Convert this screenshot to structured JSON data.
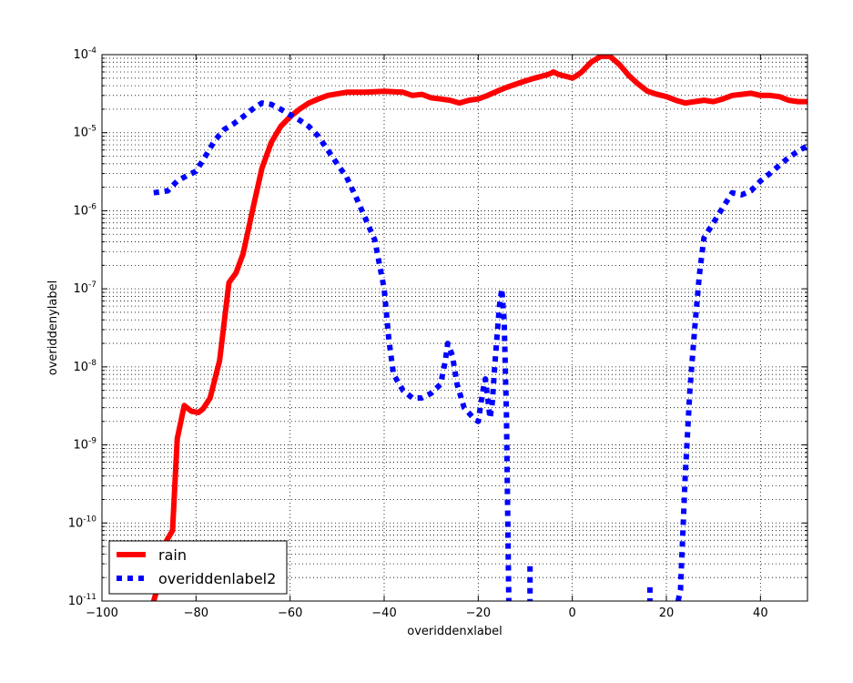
{
  "chart_data": {
    "type": "line",
    "title": "",
    "xlabel": "overiddenxlabel",
    "ylabel": "overiddenylabel",
    "xlim": [
      -100,
      50
    ],
    "ylim": [
      1e-11,
      0.0001
    ],
    "yscale": "log",
    "grid": true,
    "legend_position": "lower-left",
    "x_ticks": [
      {
        "value": -100,
        "label": "−100"
      },
      {
        "value": -80,
        "label": "−80"
      },
      {
        "value": -60,
        "label": "−60"
      },
      {
        "value": -40,
        "label": "−40"
      },
      {
        "value": -20,
        "label": "−20"
      },
      {
        "value": 0,
        "label": "0"
      },
      {
        "value": 20,
        "label": "20"
      },
      {
        "value": 40,
        "label": "40"
      }
    ],
    "y_ticks": [
      {
        "exp": -11,
        "base": "10",
        "sup": "-11"
      },
      {
        "exp": -10,
        "base": "10",
        "sup": "-10"
      },
      {
        "exp": -9,
        "base": "10",
        "sup": "-9"
      },
      {
        "exp": -8,
        "base": "10",
        "sup": "-8"
      },
      {
        "exp": -7,
        "base": "10",
        "sup": "-7"
      },
      {
        "exp": -6,
        "base": "10",
        "sup": "-6"
      },
      {
        "exp": -5,
        "base": "10",
        "sup": "-5"
      },
      {
        "exp": -4,
        "base": "10",
        "sup": "-4"
      }
    ],
    "series": [
      {
        "name": "rain",
        "color": "#ff0000",
        "style": "solid",
        "points": [
          [
            -89,
            1e-11
          ],
          [
            -88,
            1.6e-11
          ],
          [
            -87,
            5e-11
          ],
          [
            -85,
            8e-11
          ],
          [
            -84,
            1.2e-09
          ],
          [
            -82.5,
            3.2e-09
          ],
          [
            -81,
            2.7e-09
          ],
          [
            -79.5,
            2.6e-09
          ],
          [
            -78.5,
            2.9e-09
          ],
          [
            -77,
            4e-09
          ],
          [
            -75,
            1.2e-08
          ],
          [
            -73,
            1.2e-07
          ],
          [
            -71.5,
            1.6e-07
          ],
          [
            -70,
            2.8e-07
          ],
          [
            -68,
            1e-06
          ],
          [
            -66,
            3.5e-06
          ],
          [
            -64,
            7.5e-06
          ],
          [
            -62,
            1.2e-05
          ],
          [
            -60,
            1.6e-05
          ],
          [
            -58,
            2e-05
          ],
          [
            -56,
            2.4e-05
          ],
          [
            -54,
            2.7e-05
          ],
          [
            -52,
            3e-05
          ],
          [
            -48,
            3.3e-05
          ],
          [
            -44,
            3.3e-05
          ],
          [
            -40,
            3.4e-05
          ],
          [
            -36,
            3.3e-05
          ],
          [
            -34,
            3e-05
          ],
          [
            -32,
            3.1e-05
          ],
          [
            -30,
            2.8e-05
          ],
          [
            -28,
            2.7e-05
          ],
          [
            -26,
            2.6e-05
          ],
          [
            -24,
            2.4e-05
          ],
          [
            -22,
            2.6e-05
          ],
          [
            -20,
            2.7e-05
          ],
          [
            -18,
            3e-05
          ],
          [
            -16,
            3.4e-05
          ],
          [
            -14,
            3.8e-05
          ],
          [
            -10,
            4.6e-05
          ],
          [
            -8,
            5e-05
          ],
          [
            -5,
            5.6e-05
          ],
          [
            -4,
            6e-05
          ],
          [
            -3,
            5.6e-05
          ],
          [
            -1,
            5.2e-05
          ],
          [
            0,
            5e-05
          ],
          [
            1,
            5.4e-05
          ],
          [
            2,
            6e-05
          ],
          [
            4,
            8e-05
          ],
          [
            6,
            9.5e-05
          ],
          [
            8,
            9.5e-05
          ],
          [
            10,
            7.5e-05
          ],
          [
            12,
            5.4e-05
          ],
          [
            14,
            4.2e-05
          ],
          [
            16,
            3.4e-05
          ],
          [
            18,
            3.1e-05
          ],
          [
            20,
            2.9e-05
          ],
          [
            22,
            2.6e-05
          ],
          [
            24,
            2.4e-05
          ],
          [
            26,
            2.5e-05
          ],
          [
            28,
            2.6e-05
          ],
          [
            30,
            2.5e-05
          ],
          [
            32,
            2.7e-05
          ],
          [
            34,
            3e-05
          ],
          [
            36,
            3.1e-05
          ],
          [
            38,
            3.2e-05
          ],
          [
            40,
            3e-05
          ],
          [
            42,
            3e-05
          ],
          [
            44,
            2.9e-05
          ],
          [
            46,
            2.6e-05
          ],
          [
            48,
            2.5e-05
          ],
          [
            50,
            2.5e-05
          ]
        ]
      },
      {
        "name": "overiddenlabel2",
        "color": "#0000ff",
        "style": "dotted",
        "segments": [
          [
            [
              -89,
              1.7e-06
            ],
            [
              -86,
              1.8e-06
            ],
            [
              -84,
              2.4e-06
            ],
            [
              -82,
              2.8e-06
            ],
            [
              -80,
              3.2e-06
            ],
            [
              -78,
              5e-06
            ],
            [
              -76,
              8e-06
            ],
            [
              -74,
              1.1e-05
            ],
            [
              -72,
              1.3e-05
            ],
            [
              -70,
              1.6e-05
            ],
            [
              -68,
              2e-05
            ],
            [
              -66,
              2.4e-05
            ],
            [
              -64,
              2.3e-05
            ],
            [
              -62,
              2e-05
            ],
            [
              -60,
              1.7e-05
            ],
            [
              -58,
              1.45e-05
            ],
            [
              -56,
              1.2e-05
            ],
            [
              -54,
              9e-06
            ],
            [
              -52,
              6e-06
            ],
            [
              -50,
              4e-06
            ],
            [
              -48,
              2.7e-06
            ],
            [
              -46,
              1.5e-06
            ],
            [
              -44,
              8e-07
            ],
            [
              -42,
              4.2e-07
            ],
            [
              -40,
              1e-07
            ],
            [
              -39,
              2.2e-08
            ],
            [
              -38,
              8e-09
            ],
            [
              -36,
              5e-09
            ],
            [
              -34,
              4e-09
            ],
            [
              -32,
              4e-09
            ],
            [
              -30,
              4.6e-09
            ],
            [
              -28,
              6e-09
            ],
            [
              -27,
              1.2e-08
            ],
            [
              -26.5,
              2e-08
            ],
            [
              -25.5,
              1.4e-08
            ],
            [
              -24.5,
              6e-09
            ],
            [
              -23,
              3e-09
            ],
            [
              -21,
              2.2e-09
            ],
            [
              -20,
              2e-09
            ],
            [
              -19,
              5e-09
            ],
            [
              -18.5,
              7e-09
            ],
            [
              -18,
              4e-09
            ],
            [
              -17.5,
              2.2e-09
            ],
            [
              -17,
              3.5e-09
            ],
            [
              -16.5,
              1e-08
            ],
            [
              -16,
              2.5e-08
            ],
            [
              -15.5,
              6e-08
            ],
            [
              -15,
              1e-07
            ],
            [
              -14.5,
              4e-08
            ],
            [
              -14,
              2.5e-09
            ],
            [
              -13.5,
              1e-11
            ]
          ],
          [
            [
              -9,
              2.8e-11
            ],
            [
              -9,
              1e-11
            ]
          ],
          [
            [
              16.5,
              1.5e-11
            ],
            [
              16.5,
              1e-11
            ]
          ],
          [
            [
              22.5,
              1e-11
            ],
            [
              23,
              1.4e-11
            ],
            [
              24,
              4e-10
            ],
            [
              25,
              5e-09
            ],
            [
              26,
              3e-08
            ],
            [
              27,
              1.5e-07
            ],
            [
              28,
              4.5e-07
            ],
            [
              30,
              7e-07
            ],
            [
              32,
              1.1e-06
            ],
            [
              34,
              1.7e-06
            ],
            [
              36,
              1.6e-06
            ],
            [
              38,
              1.8e-06
            ],
            [
              40,
              2.4e-06
            ],
            [
              42,
              3e-06
            ],
            [
              44,
              3.8e-06
            ],
            [
              46,
              4.8e-06
            ],
            [
              48,
              5.8e-06
            ],
            [
              50,
              6.8e-06
            ]
          ]
        ]
      }
    ]
  }
}
